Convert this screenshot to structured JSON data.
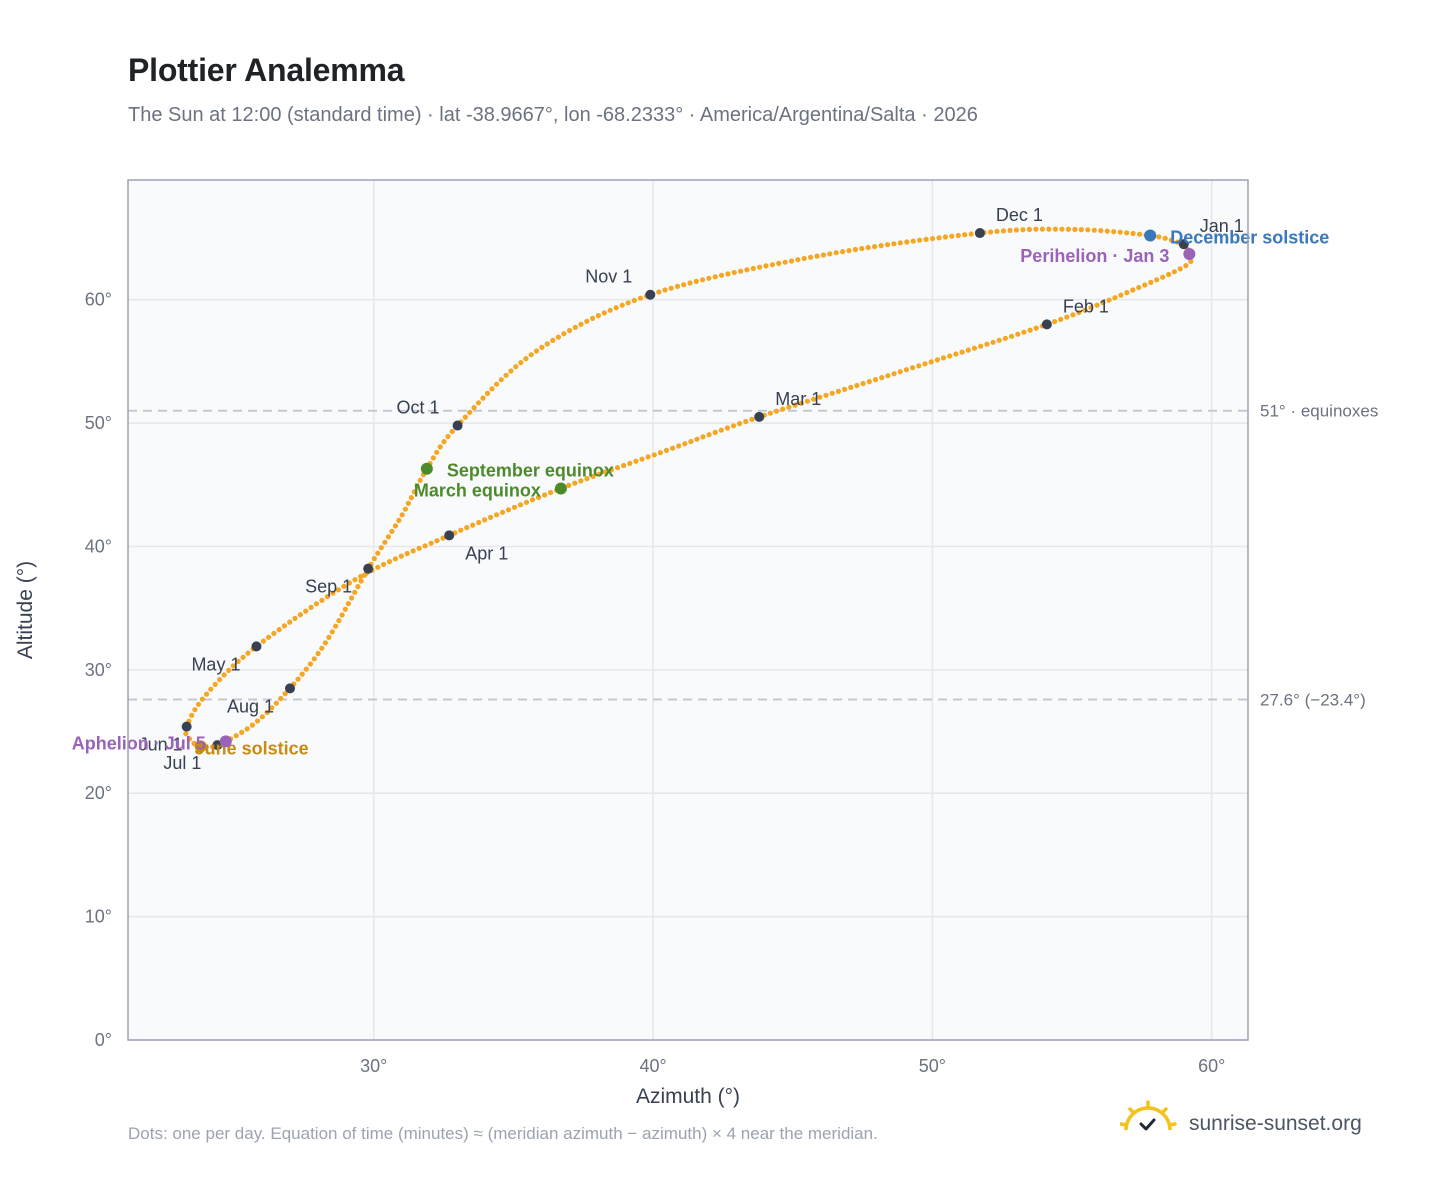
{
  "header": {
    "title": "Plottier Analemma",
    "subtitle": "The Sun at 12:00 (standard time) · lat -38.9667°, lon -68.2333° · America/Argentina/Salta · 2026"
  },
  "footer": {
    "note": "Dots: one per day. Equation of time (minutes) ≈ (meridian azimuth − azimuth) × 4 near the meridian.",
    "brand": "sunrise-sunset.org"
  },
  "colors": {
    "curve": "#f5a623",
    "month_marker": "#374151",
    "equinox": "#4d8a2a",
    "december_solstice": "#3a78bd",
    "june_solstice": "#c98b12",
    "apsis": "#9a63b8",
    "reference_line": "#c4c9d1",
    "grid": "#e5e7eb",
    "plot_bg": "#f8fafc"
  },
  "chart_data": {
    "type": "scatter",
    "title": "Plottier Analemma",
    "xlabel": "Azimuth (°)",
    "ylabel": "Altitude (°)",
    "xlim": [
      21.2,
      61.3
    ],
    "ylim": [
      0,
      69.7
    ],
    "x_ticks": [
      30,
      40,
      50,
      60
    ],
    "x_tick_labels": [
      "30°",
      "40°",
      "50°",
      "60°"
    ],
    "y_ticks": [
      0,
      10,
      20,
      30,
      40,
      50,
      60
    ],
    "y_tick_labels": [
      "0°",
      "10°",
      "20°",
      "30°",
      "40°",
      "50°",
      "60°"
    ],
    "grid": true,
    "series": [
      {
        "style": "daily dots",
        "path_points": [
          {
            "day": "Jan 1",
            "azimuth": 59.0,
            "altitude": 64.5
          },
          {
            "day": "Jan 3",
            "azimuth": 59.2,
            "altitude": 63.7
          },
          {
            "day": "Jan 10",
            "azimuth": 59.1,
            "altitude": 62.8
          },
          {
            "day": "Jan 20",
            "azimuth": 57.3,
            "altitude": 60.9
          },
          {
            "day": "Feb 1",
            "azimuth": 54.1,
            "altitude": 58.0
          },
          {
            "day": "Feb 15",
            "azimuth": 48.9,
            "altitude": 54.2
          },
          {
            "day": "Mar 1",
            "azimuth": 43.8,
            "altitude": 50.5
          },
          {
            "day": "Mar 10",
            "azimuth": 40.5,
            "altitude": 47.8
          },
          {
            "day": "Mar 20",
            "azimuth": 36.7,
            "altitude": 44.7
          },
          {
            "day": "Apr 1",
            "azimuth": 32.7,
            "altitude": 40.9
          },
          {
            "day": "Apr 15",
            "azimuth": 29.4,
            "altitude": 37.4
          },
          {
            "day": "May 1",
            "azimuth": 25.8,
            "altitude": 31.9
          },
          {
            "day": "May 15",
            "azimuth": 24.0,
            "altitude": 28.0
          },
          {
            "day": "Jun 1",
            "azimuth": 23.3,
            "altitude": 25.4
          },
          {
            "day": "Jun 10",
            "azimuth": 23.4,
            "altitude": 24.4
          },
          {
            "day": "Jun 21",
            "azimuth": 23.8,
            "altitude": 23.8
          },
          {
            "day": "Jul 1",
            "azimuth": 24.4,
            "altitude": 23.9
          },
          {
            "day": "Jul 15",
            "azimuth": 25.7,
            "altitude": 25.6
          },
          {
            "day": "Aug 1",
            "azimuth": 27.0,
            "altitude": 28.5
          },
          {
            "day": "Aug 15",
            "azimuth": 28.3,
            "altitude": 32.3
          },
          {
            "day": "Sep 1",
            "azimuth": 29.8,
            "altitude": 38.2
          },
          {
            "day": "Sep 10",
            "azimuth": 31.0,
            "altitude": 42.5
          },
          {
            "day": "Sep 22",
            "azimuth": 31.9,
            "altitude": 46.3
          },
          {
            "day": "Oct 1",
            "azimuth": 33.0,
            "altitude": 49.8
          },
          {
            "day": "Oct 15",
            "azimuth": 35.8,
            "altitude": 55.8
          },
          {
            "day": "Nov 1",
            "azimuth": 39.9,
            "altitude": 60.4
          },
          {
            "day": "Nov 15",
            "azimuth": 45.8,
            "altitude": 63.5
          },
          {
            "day": "Dec 1",
            "azimuth": 51.7,
            "altitude": 65.4
          },
          {
            "day": "Dec 10",
            "azimuth": 55.0,
            "altitude": 65.7
          },
          {
            "day": "Dec 21",
            "azimuth": 57.8,
            "altitude": 65.2
          },
          {
            "day": "Dec 31",
            "azimuth": 59.0,
            "altitude": 64.5
          }
        ]
      }
    ],
    "month_markers": [
      {
        "label": "Jan 1",
        "azimuth": 59.0,
        "altitude": 64.5,
        "anchor": "right-above"
      },
      {
        "label": "Feb 1",
        "azimuth": 54.1,
        "altitude": 58.0,
        "anchor": "right-above"
      },
      {
        "label": "Mar 1",
        "azimuth": 43.8,
        "altitude": 50.5,
        "anchor": "right-above"
      },
      {
        "label": "Apr 1",
        "azimuth": 32.7,
        "altitude": 40.9,
        "anchor": "left-below"
      },
      {
        "label": "May 1",
        "azimuth": 25.8,
        "altitude": 31.9,
        "anchor": "left-below"
      },
      {
        "label": "Jun 1",
        "azimuth": 23.3,
        "altitude": 25.4,
        "anchor": "left-below"
      },
      {
        "label": "Jul 1",
        "azimuth": 24.4,
        "altitude": 23.9,
        "anchor": "left-below"
      },
      {
        "label": "Aug 1",
        "azimuth": 27.0,
        "altitude": 28.5,
        "anchor": "left-below"
      },
      {
        "label": "Sep 1",
        "azimuth": 29.8,
        "altitude": 38.2,
        "anchor": "left-below"
      },
      {
        "label": "Oct 1",
        "azimuth": 33.0,
        "altitude": 49.8,
        "anchor": "left-above"
      },
      {
        "label": "Nov 1",
        "azimuth": 39.9,
        "altitude": 60.4,
        "anchor": "left-above"
      },
      {
        "label": "Dec 1",
        "azimuth": 51.7,
        "altitude": 65.4,
        "anchor": "right-above"
      }
    ],
    "special_points": [
      {
        "label": "December solstice",
        "azimuth": 57.8,
        "altitude": 65.2,
        "color_key": "december_solstice",
        "label_side": "right"
      },
      {
        "label": "Perihelion · Jan 3",
        "azimuth": 59.2,
        "altitude": 63.7,
        "color_key": "apsis",
        "label_side": "left"
      },
      {
        "label": "September equinox",
        "azimuth": 31.9,
        "altitude": 46.3,
        "color_key": "equinox",
        "label_side": "right"
      },
      {
        "label": "March equinox",
        "azimuth": 36.7,
        "altitude": 44.7,
        "color_key": "equinox",
        "label_side": "left"
      },
      {
        "label": "June solstice",
        "azimuth": 23.8,
        "altitude": 23.8,
        "color_key": "june_solstice",
        "label_side": "right"
      },
      {
        "label": "Aphelion · Jul 5",
        "azimuth": 24.7,
        "altitude": 24.2,
        "color_key": "apsis",
        "label_side": "left"
      }
    ],
    "reference_lines": [
      {
        "altitude": 51.0,
        "label": "51° · equinoxes"
      },
      {
        "altitude": 27.6,
        "label": "27.6° (−23.4°)"
      }
    ]
  }
}
